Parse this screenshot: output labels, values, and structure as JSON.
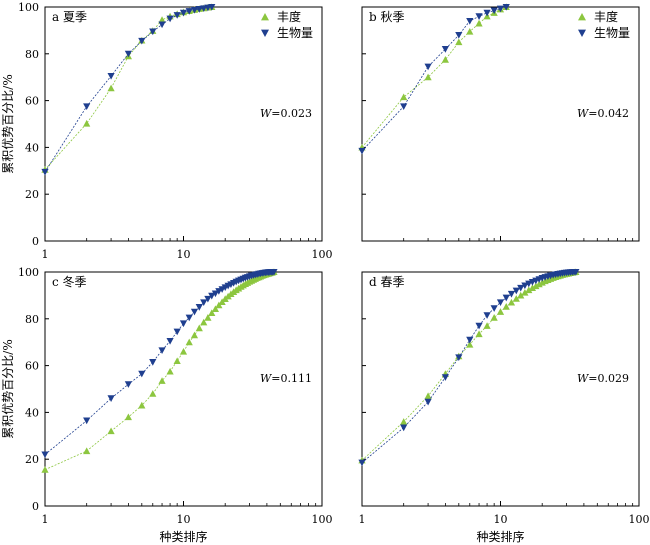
{
  "colors": {
    "abundance": "#8cc63f",
    "biomass": "#1f3f8f",
    "axis": "#000000"
  },
  "chart_data": [
    {
      "type": "line",
      "panel": "a",
      "title": "a 夏季",
      "w_label": "W=0.023",
      "ylabel": "累积优势百分比/%",
      "xlabel": "",
      "xscale": "log",
      "xlim": [
        1,
        100
      ],
      "ylim": [
        0,
        100
      ],
      "xticks": [
        "1",
        "10",
        "100"
      ],
      "yticks": [
        "0",
        "20",
        "40",
        "60",
        "80",
        "100"
      ],
      "legend": [
        "丰度",
        "生物量"
      ],
      "series": [
        {
          "name": "丰度",
          "marker": "triangle-up",
          "x": [
            1,
            2,
            3,
            4,
            5,
            6,
            7,
            8,
            9,
            10,
            11,
            12,
            13,
            14,
            15,
            16
          ],
          "y": [
            30.5,
            50.2,
            65.3,
            79.0,
            85.7,
            89.8,
            94.5,
            96.0,
            97.0,
            97.8,
            98.3,
            98.8,
            99.2,
            99.5,
            99.8,
            100
          ]
        },
        {
          "name": "生物量",
          "marker": "triangle-down",
          "x": [
            1,
            2,
            3,
            4,
            5,
            6,
            7,
            8,
            9,
            10,
            11,
            12,
            13,
            14,
            15,
            16
          ],
          "y": [
            29.5,
            57.5,
            70.5,
            80.0,
            85.5,
            89.5,
            92.5,
            95.0,
            96.5,
            97.5,
            98.2,
            98.7,
            99.1,
            99.4,
            99.7,
            100
          ]
        }
      ]
    },
    {
      "type": "line",
      "panel": "b",
      "title": "b 秋季",
      "w_label": "W=0.042",
      "ylabel": "",
      "xlabel": "",
      "xscale": "log",
      "xlim": [
        1,
        100
      ],
      "ylim": [
        0,
        100
      ],
      "xticks": [],
      "yticks": [],
      "legend": [
        "丰度",
        "生物量"
      ],
      "series": [
        {
          "name": "丰度",
          "marker": "triangle-up",
          "x": [
            1,
            2,
            3,
            4,
            5,
            6,
            7,
            8,
            9,
            10,
            11
          ],
          "y": [
            40,
            61.5,
            70,
            77.5,
            85,
            89.5,
            93,
            96,
            97.5,
            99,
            100
          ]
        },
        {
          "name": "生物量",
          "marker": "triangle-down",
          "x": [
            1,
            2,
            3,
            4,
            5,
            6,
            7,
            8,
            9,
            10,
            11
          ],
          "y": [
            38.5,
            57.5,
            74.5,
            82,
            88,
            94,
            96,
            97.5,
            98.5,
            99.3,
            100
          ]
        }
      ]
    },
    {
      "type": "line",
      "panel": "c",
      "title": "c 冬季",
      "w_label": "W=0.111",
      "ylabel": "累积优势百分比/%",
      "xlabel": "种类排序",
      "xscale": "log",
      "xlim": [
        1,
        100
      ],
      "ylim": [
        0,
        100
      ],
      "xticks": [
        "1",
        "10",
        "100"
      ],
      "yticks": [
        "0",
        "20",
        "40",
        "60",
        "80",
        "100"
      ],
      "legend": [],
      "series": [
        {
          "name": "丰度",
          "marker": "triangle-up",
          "x": [
            1,
            2,
            3,
            4,
            5,
            6,
            7,
            8,
            9,
            10,
            11,
            12,
            13,
            14,
            15,
            16,
            17,
            18,
            19,
            20,
            21,
            22,
            23,
            24,
            25,
            26,
            27,
            28,
            29,
            30,
            31,
            32,
            33,
            34,
            35,
            36,
            37,
            38,
            39,
            40,
            41,
            42,
            43,
            44,
            45
          ],
          "y": [
            15.5,
            23.5,
            32,
            38,
            43,
            48,
            53.5,
            57.5,
            62,
            66,
            70,
            73,
            76,
            78.5,
            80.5,
            82.5,
            84.2,
            85.8,
            87.2,
            88.5,
            89.6,
            90.6,
            91.5,
            92.3,
            93,
            93.7,
            94.3,
            94.9,
            95.4,
            95.9,
            96.3,
            96.7,
            97.1,
            97.5,
            97.8,
            98.1,
            98.4,
            98.7,
            98.9,
            99.1,
            99.3,
            99.5,
            99.7,
            99.85,
            100
          ]
        },
        {
          "name": "生物量",
          "marker": "triangle-down",
          "x": [
            1,
            2,
            3,
            4,
            5,
            6,
            7,
            8,
            9,
            10,
            11,
            12,
            13,
            14,
            15,
            16,
            17,
            18,
            19,
            20,
            21,
            22,
            23,
            24,
            25,
            26,
            27,
            28,
            29,
            30,
            31,
            32,
            33,
            34,
            35,
            36,
            37,
            38,
            39,
            40,
            41,
            42,
            43,
            44,
            45
          ],
          "y": [
            22,
            36.5,
            46,
            52,
            56.5,
            61.5,
            66.5,
            70.5,
            74.5,
            78,
            80.5,
            83,
            85,
            87,
            88.5,
            89.8,
            90.8,
            91.8,
            92.6,
            93.4,
            94.1,
            94.7,
            95.3,
            95.8,
            96.3,
            96.7,
            97.1,
            97.5,
            97.8,
            98.1,
            98.4,
            98.6,
            98.8,
            99,
            99.2,
            99.35,
            99.5,
            99.6,
            99.7,
            99.8,
            99.85,
            99.9,
            99.95,
            99.98,
            100
          ]
        }
      ]
    },
    {
      "type": "line",
      "panel": "d",
      "title": "d 春季",
      "w_label": "W=0.029",
      "ylabel": "",
      "xlabel": "种类排序",
      "xscale": "log",
      "xlim": [
        1,
        100
      ],
      "ylim": [
        0,
        100
      ],
      "xticks": [
        "1",
        "10",
        "100"
      ],
      "yticks": [],
      "legend": [],
      "series": [
        {
          "name": "丰度",
          "marker": "triangle-up",
          "x": [
            1,
            2,
            3,
            4,
            5,
            6,
            7,
            8,
            9,
            10,
            11,
            12,
            13,
            14,
            15,
            16,
            17,
            18,
            19,
            20,
            21,
            22,
            23,
            24,
            25,
            26,
            27,
            28,
            29,
            30,
            31,
            32,
            33,
            34,
            35
          ],
          "y": [
            19.5,
            36,
            47,
            56.5,
            64,
            69,
            73.5,
            77,
            80.5,
            83,
            85.2,
            87,
            88.6,
            90,
            91.2,
            92.3,
            93.2,
            94,
            94.8,
            95.5,
            96.1,
            96.6,
            97.1,
            97.5,
            97.9,
            98.2,
            98.5,
            98.8,
            99,
            99.2,
            99.4,
            99.6,
            99.75,
            99.9,
            100
          ]
        },
        {
          "name": "生物量",
          "marker": "triangle-down",
          "x": [
            1,
            2,
            3,
            4,
            5,
            6,
            7,
            8,
            9,
            10,
            11,
            12,
            13,
            14,
            15,
            16,
            17,
            18,
            19,
            20,
            21,
            22,
            23,
            24,
            25,
            26,
            27,
            28,
            29,
            30,
            31,
            32,
            33,
            34,
            35
          ],
          "y": [
            18.5,
            33.5,
            44.5,
            55,
            63.5,
            71,
            77,
            81.5,
            84.5,
            87,
            89,
            90.6,
            92,
            93.2,
            94.2,
            95,
            95.7,
            96.3,
            96.9,
            97.4,
            97.8,
            98.1,
            98.4,
            98.7,
            98.9,
            99.1,
            99.3,
            99.45,
            99.6,
            99.7,
            99.8,
            99.88,
            99.94,
            99.98,
            100
          ]
        }
      ]
    }
  ]
}
